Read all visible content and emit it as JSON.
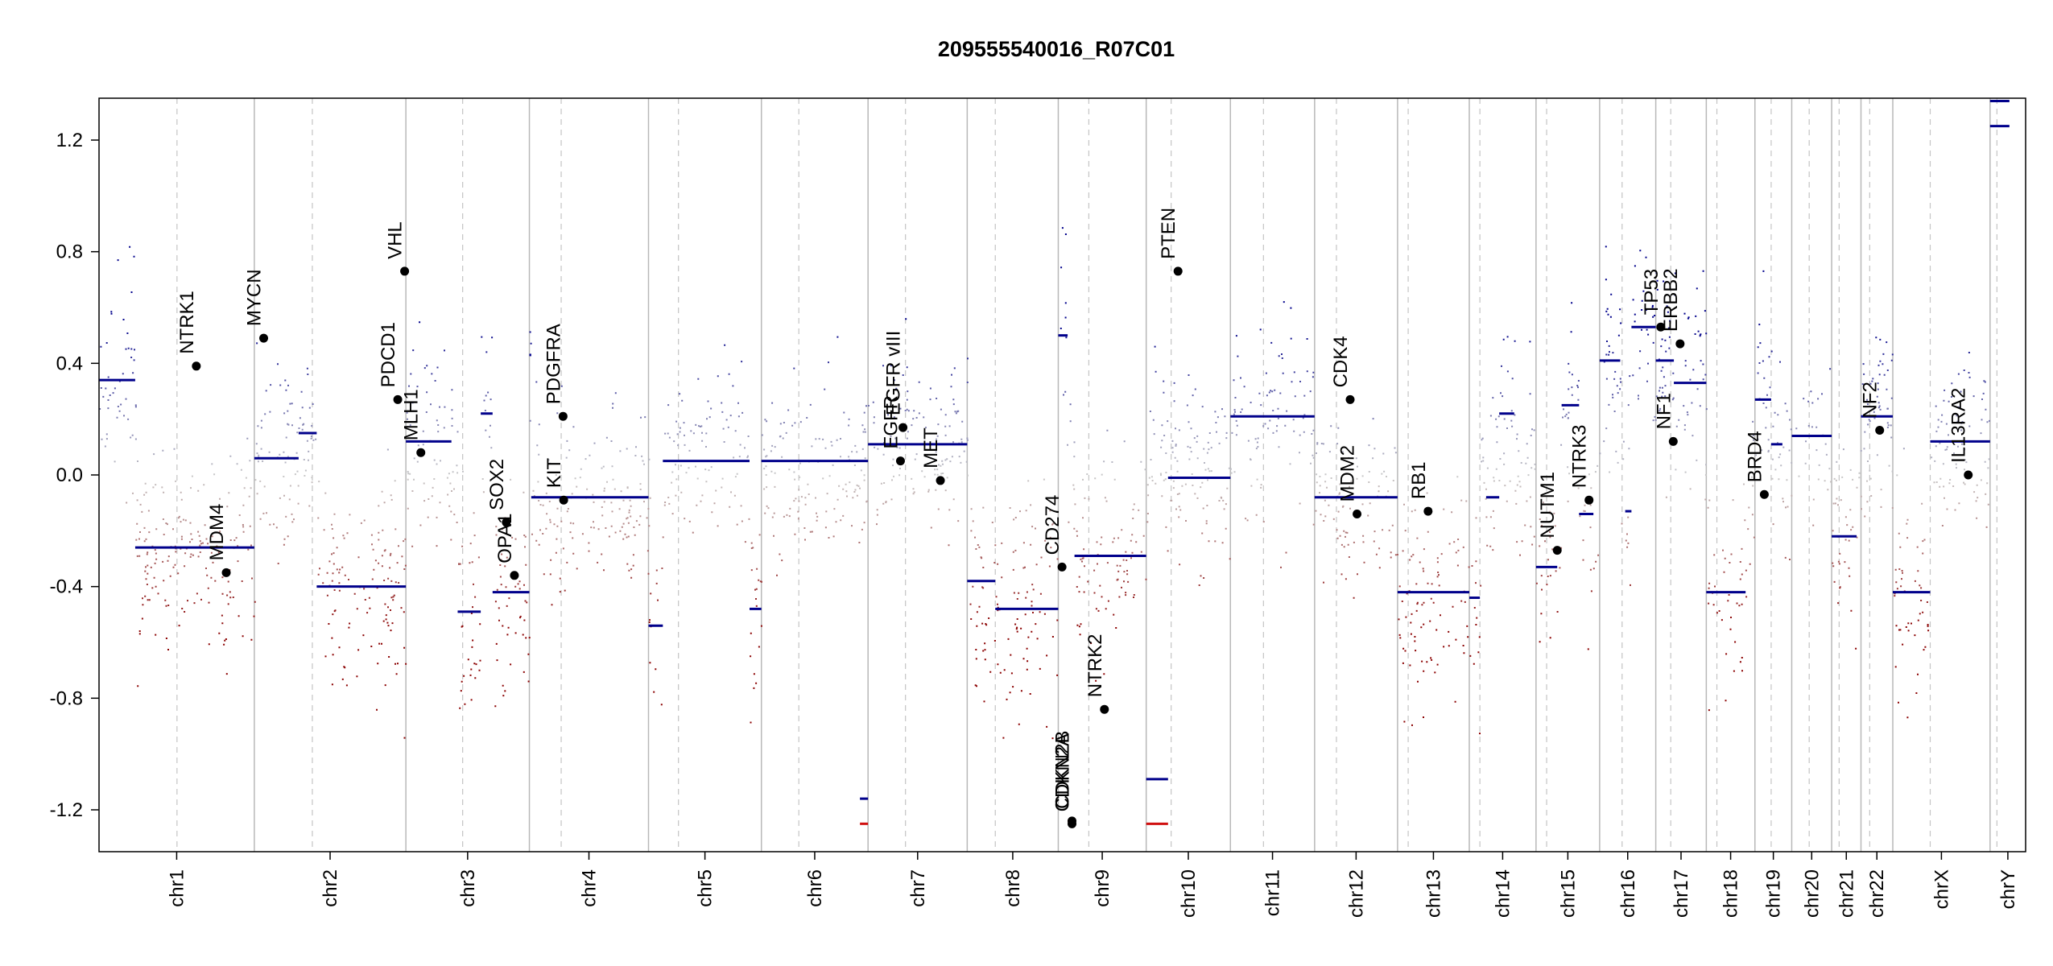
{
  "chart_data": {
    "type": "scatter",
    "title": "209555540016_R07C01",
    "xlabel": "",
    "ylabel": "",
    "ylim": [
      -1.35,
      1.35
    ],
    "y_ticks": [
      -1.2,
      -0.8,
      -0.4,
      0.0,
      0.4,
      0.8,
      1.2
    ],
    "y_tick_labels": [
      "-1.2",
      "-0.8",
      "-0.4",
      "0.0",
      "0.4",
      "0.8",
      "1.2"
    ],
    "grid": "chromosome boundaries (solid) and centromeres (dashed)",
    "colors": {
      "gain": "#00008B",
      "loss": "#8B0000",
      "neutral": "#C0C0C0",
      "segment": "#00008B",
      "frame": "#000000"
    },
    "chromosomes": [
      {
        "name": "chr1",
        "start": 0,
        "end": 249,
        "centromere": 125
      },
      {
        "name": "chr2",
        "start": 249,
        "end": 492,
        "centromere": 342
      },
      {
        "name": "chr3",
        "start": 492,
        "end": 690,
        "centromere": 583
      },
      {
        "name": "chr4",
        "start": 690,
        "end": 881,
        "centromere": 741
      },
      {
        "name": "chr5",
        "start": 881,
        "end": 1062,
        "centromere": 929
      },
      {
        "name": "chr6",
        "start": 1062,
        "end": 1233,
        "centromere": 1122
      },
      {
        "name": "chr7",
        "start": 1233,
        "end": 1392,
        "centromere": 1293
      },
      {
        "name": "chr8",
        "start": 1392,
        "end": 1538,
        "centromere": 1437
      },
      {
        "name": "chr9",
        "start": 1538,
        "end": 1679,
        "centromere": 1587
      },
      {
        "name": "chr10",
        "start": 1679,
        "end": 1814,
        "centromere": 1719
      },
      {
        "name": "chr11",
        "start": 1814,
        "end": 1949,
        "centromere": 1867
      },
      {
        "name": "chr12",
        "start": 1949,
        "end": 2082,
        "centromere": 1984
      },
      {
        "name": "chr13",
        "start": 2082,
        "end": 2197,
        "centromere": 2099
      },
      {
        "name": "chr14",
        "start": 2197,
        "end": 2304,
        "centromere": 2214
      },
      {
        "name": "chr15",
        "start": 2304,
        "end": 2406,
        "centromere": 2321
      },
      {
        "name": "chr16",
        "start": 2406,
        "end": 2496,
        "centromere": 2442
      },
      {
        "name": "chr17",
        "start": 2496,
        "end": 2577,
        "centromere": 2520
      },
      {
        "name": "chr18",
        "start": 2577,
        "end": 2655,
        "centromere": 2594
      },
      {
        "name": "chr19",
        "start": 2655,
        "end": 2714,
        "centromere": 2681
      },
      {
        "name": "chr20",
        "start": 2714,
        "end": 2778,
        "centromere": 2742
      },
      {
        "name": "chr21",
        "start": 2778,
        "end": 2825,
        "centromere": 2790
      },
      {
        "name": "chr22",
        "start": 2825,
        "end": 2876,
        "centromere": 2839
      },
      {
        "name": "chrX",
        "start": 2876,
        "end": 3032,
        "centromere": 2936
      },
      {
        "name": "chrY",
        "start": 3032,
        "end": 3089,
        "centromere": 3043
      }
    ],
    "segments": [
      {
        "x0": 0,
        "x1": 58,
        "y": 0.34
      },
      {
        "x0": 58,
        "x1": 249,
        "y": -0.26
      },
      {
        "x0": 249,
        "x1": 320,
        "y": 0.06
      },
      {
        "x0": 320,
        "x1": 349,
        "y": 0.15
      },
      {
        "x0": 349,
        "x1": 492,
        "y": -0.4
      },
      {
        "x0": 492,
        "x1": 565,
        "y": 0.12
      },
      {
        "x0": 575,
        "x1": 612,
        "y": -0.49
      },
      {
        "x0": 612,
        "x1": 631,
        "y": 0.22
      },
      {
        "x0": 631,
        "x1": 690,
        "y": -0.42
      },
      {
        "x0": 690,
        "x1": 693,
        "y": 0.43
      },
      {
        "x0": 693,
        "x1": 881,
        "y": -0.08
      },
      {
        "x0": 881,
        "x1": 904,
        "y": -0.54
      },
      {
        "x0": 904,
        "x1": 1043,
        "y": 0.05
      },
      {
        "x0": 1043,
        "x1": 1062,
        "y": -0.48
      },
      {
        "x0": 1062,
        "x1": 1233,
        "y": 0.05
      },
      {
        "x0": 1220,
        "x1": 1233,
        "y": -1.16
      },
      {
        "x0": 1220,
        "x1": 1233,
        "y": -1.25
      },
      {
        "x0": 1233,
        "x1": 1392,
        "y": 0.11
      },
      {
        "x0": 1392,
        "x1": 1437,
        "y": -0.38
      },
      {
        "x0": 1437,
        "x1": 1538,
        "y": -0.48
      },
      {
        "x0": 1538,
        "x1": 1553,
        "y": 0.5
      },
      {
        "x0": 1553,
        "x1": 1564,
        "y": -1.24
      },
      {
        "x0": 1564,
        "x1": 1679,
        "y": -0.29
      },
      {
        "x0": 1679,
        "x1": 1714,
        "y": -1.09
      },
      {
        "x0": 1679,
        "x1": 1714,
        "y": -1.25
      },
      {
        "x0": 1714,
        "x1": 1814,
        "y": -0.01
      },
      {
        "x0": 1814,
        "x1": 1949,
        "y": 0.21
      },
      {
        "x0": 1949,
        "x1": 2082,
        "y": -0.08
      },
      {
        "x0": 2082,
        "x1": 2197,
        "y": -0.42
      },
      {
        "x0": 2197,
        "x1": 2214,
        "y": -0.44
      },
      {
        "x0": 2224,
        "x1": 2245,
        "y": -0.08
      },
      {
        "x0": 2245,
        "x1": 2269,
        "y": 0.22
      },
      {
        "x0": 2304,
        "x1": 2338,
        "y": -0.33
      },
      {
        "x0": 2345,
        "x1": 2373,
        "y": 0.25
      },
      {
        "x0": 2373,
        "x1": 2396,
        "y": -0.14
      },
      {
        "x0": 2406,
        "x1": 2439,
        "y": 0.41
      },
      {
        "x0": 2447,
        "x1": 2457,
        "y": -0.13
      },
      {
        "x0": 2457,
        "x1": 2496,
        "y": 0.53
      },
      {
        "x0": 2496,
        "x1": 2525,
        "y": 0.41
      },
      {
        "x0": 2525,
        "x1": 2577,
        "y": 0.33
      },
      {
        "x0": 2577,
        "x1": 2640,
        "y": -0.42
      },
      {
        "x0": 2655,
        "x1": 2681,
        "y": 0.27
      },
      {
        "x0": 2681,
        "x1": 2699,
        "y": 0.11
      },
      {
        "x0": 2714,
        "x1": 2778,
        "y": 0.14
      },
      {
        "x0": 2778,
        "x1": 2818,
        "y": -0.22
      },
      {
        "x0": 2825,
        "x1": 2876,
        "y": 0.21
      },
      {
        "x0": 2876,
        "x1": 2936,
        "y": -0.42
      },
      {
        "x0": 2936,
        "x1": 3032,
        "y": 0.12
      },
      {
        "x0": 3032,
        "x1": 3063,
        "y": 1.34
      },
      {
        "x0": 3032,
        "x1": 3063,
        "y": 1.25
      }
    ],
    "genes": [
      {
        "name": "NTRK1",
        "x": 156,
        "y": 0.39
      },
      {
        "name": "MDM4",
        "x": 204,
        "y": -0.35
      },
      {
        "name": "MYCN",
        "x": 264,
        "y": 0.49
      },
      {
        "name": "PDCD1",
        "x": 479,
        "y": 0.27
      },
      {
        "name": "VHL",
        "x": 490,
        "y": 0.73
      },
      {
        "name": "MLH1",
        "x": 516,
        "y": 0.08
      },
      {
        "name": "SOX2",
        "x": 653,
        "y": -0.17
      },
      {
        "name": "OPA1",
        "x": 666,
        "y": -0.36
      },
      {
        "name": "PDGFRA",
        "x": 744,
        "y": 0.21
      },
      {
        "name": "KIT",
        "x": 745,
        "y": -0.09
      },
      {
        "name": "EGFR",
        "x": 1285,
        "y": 0.05
      },
      {
        "name": "EGFR_vIII",
        "x": 1289,
        "y": 0.17
      },
      {
        "name": "MET",
        "x": 1349,
        "y": -0.02
      },
      {
        "name": "CD274",
        "x": 1544,
        "y": -0.33
      },
      {
        "name": "CDKN2A",
        "x": 1560,
        "y": -1.25
      },
      {
        "name": "CDKN2B",
        "x": 1560,
        "y": -1.24
      },
      {
        "name": "NTRK2",
        "x": 1612,
        "y": -0.84
      },
      {
        "name": "PTEN",
        "x": 1730,
        "y": 0.73
      },
      {
        "name": "CDK4",
        "x": 2006,
        "y": 0.27
      },
      {
        "name": "MDM2",
        "x": 2017,
        "y": -0.14
      },
      {
        "name": "RB1",
        "x": 2131,
        "y": -0.13
      },
      {
        "name": "NUTM1",
        "x": 2338,
        "y": -0.27
      },
      {
        "name": "NTRK3",
        "x": 2389,
        "y": -0.09
      },
      {
        "name": "TP53",
        "x": 2504,
        "y": 0.53
      },
      {
        "name": "NF1",
        "x": 2524,
        "y": 0.12
      },
      {
        "name": "ERBB2",
        "x": 2535,
        "y": 0.47
      },
      {
        "name": "BRD4",
        "x": 2670,
        "y": -0.07
      },
      {
        "name": "NF2",
        "x": 2855,
        "y": 0.16
      },
      {
        "name": "IL13RA2",
        "x": 2997,
        "y": 0.0
      }
    ]
  }
}
